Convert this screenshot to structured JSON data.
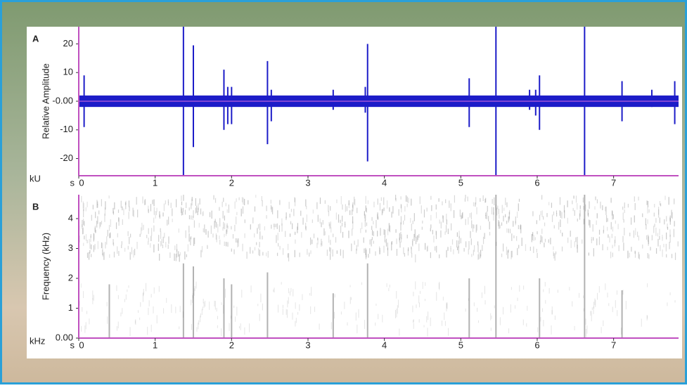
{
  "chart_data": [
    {
      "type": "oscillogram",
      "panel_label": "A",
      "y_label": "Relative Amplitude",
      "y_unit": "kU",
      "x_unit": "s",
      "xlim": [
        0,
        7.85
      ],
      "xticks": [
        0,
        1,
        2,
        3,
        4,
        5,
        6,
        7
      ],
      "ylim": [
        -26,
        26
      ],
      "yticks": [
        20,
        10,
        {
          "value": 0,
          "label": "-0.00"
        },
        -10,
        -20
      ],
      "noise_band": [
        -2,
        2
      ],
      "color": "#1c1cc8",
      "axis_color": "#c050c0",
      "x": [
        0.07,
        1.37,
        1.5,
        1.9,
        1.95,
        2.0,
        2.47,
        2.52,
        3.33,
        3.75,
        3.78,
        5.11,
        5.46,
        5.9,
        5.98,
        6.03,
        6.62,
        7.11,
        7.5,
        7.8
      ],
      "peaks": [
        9,
        26,
        19.5,
        11,
        5,
        5,
        14,
        4,
        4,
        5,
        20,
        8,
        26,
        4,
        4,
        9,
        26,
        7,
        4,
        7
      ],
      "troughs": [
        -9,
        -26,
        -16,
        -10,
        -8,
        -8,
        -15,
        -7,
        -3,
        -4,
        -21,
        -9,
        -26,
        -3,
        -5,
        -10,
        -26,
        -7,
        -2,
        -8
      ]
    },
    {
      "type": "spectrogram",
      "panel_label": "B",
      "y_label": "Frequency (kHz)",
      "y_unit": "kHz",
      "x_unit": "s",
      "xlim": [
        0,
        7.85
      ],
      "xticks": [
        0,
        1,
        2,
        3,
        4,
        5,
        6,
        7
      ],
      "ylim": [
        0,
        4.8
      ],
      "yticks": [
        {
          "value": 0,
          "label": "0.00"
        },
        1,
        2,
        3,
        4
      ],
      "noise_band": [
        2.8,
        4.8
      ],
      "color": "#555555",
      "axis_color": "#c050c0",
      "x": [
        0.4,
        1.37,
        1.5,
        1.9,
        2.0,
        2.47,
        3.33,
        3.78,
        5.11,
        5.46,
        6.03,
        6.62,
        7.11
      ],
      "values": [
        1.8,
        2.5,
        2.4,
        2.0,
        1.8,
        2.2,
        1.5,
        2.5,
        2.0,
        4.8,
        2.0,
        4.8,
        1.6
      ]
    }
  ]
}
